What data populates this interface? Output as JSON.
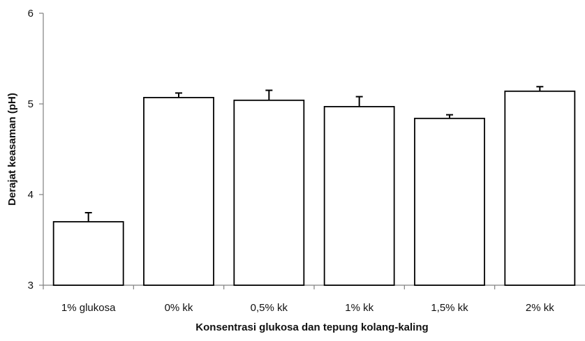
{
  "chart_data": {
    "type": "bar",
    "title": "",
    "xlabel": "Konsentrasi glukosa dan tepung kolang-kaling",
    "ylabel": "Derajat keasaman (pH)",
    "ylim": [
      3,
      6
    ],
    "yticks": [
      3,
      4,
      5,
      6
    ],
    "grid": false,
    "legend": "none",
    "categories": [
      "1% glukosa",
      "0% kk",
      "0,5% kk",
      "1% kk",
      "1,5% kk",
      "2% kk"
    ],
    "values": [
      3.7,
      5.07,
      5.04,
      4.97,
      4.84,
      5.14
    ],
    "errors": [
      0.1,
      0.05,
      0.11,
      0.11,
      0.04,
      0.05
    ],
    "colors": {
      "bar_fill": "#ffffff",
      "bar_stroke": "#000000",
      "axis": "#808080",
      "error_bar": "#000000"
    }
  }
}
